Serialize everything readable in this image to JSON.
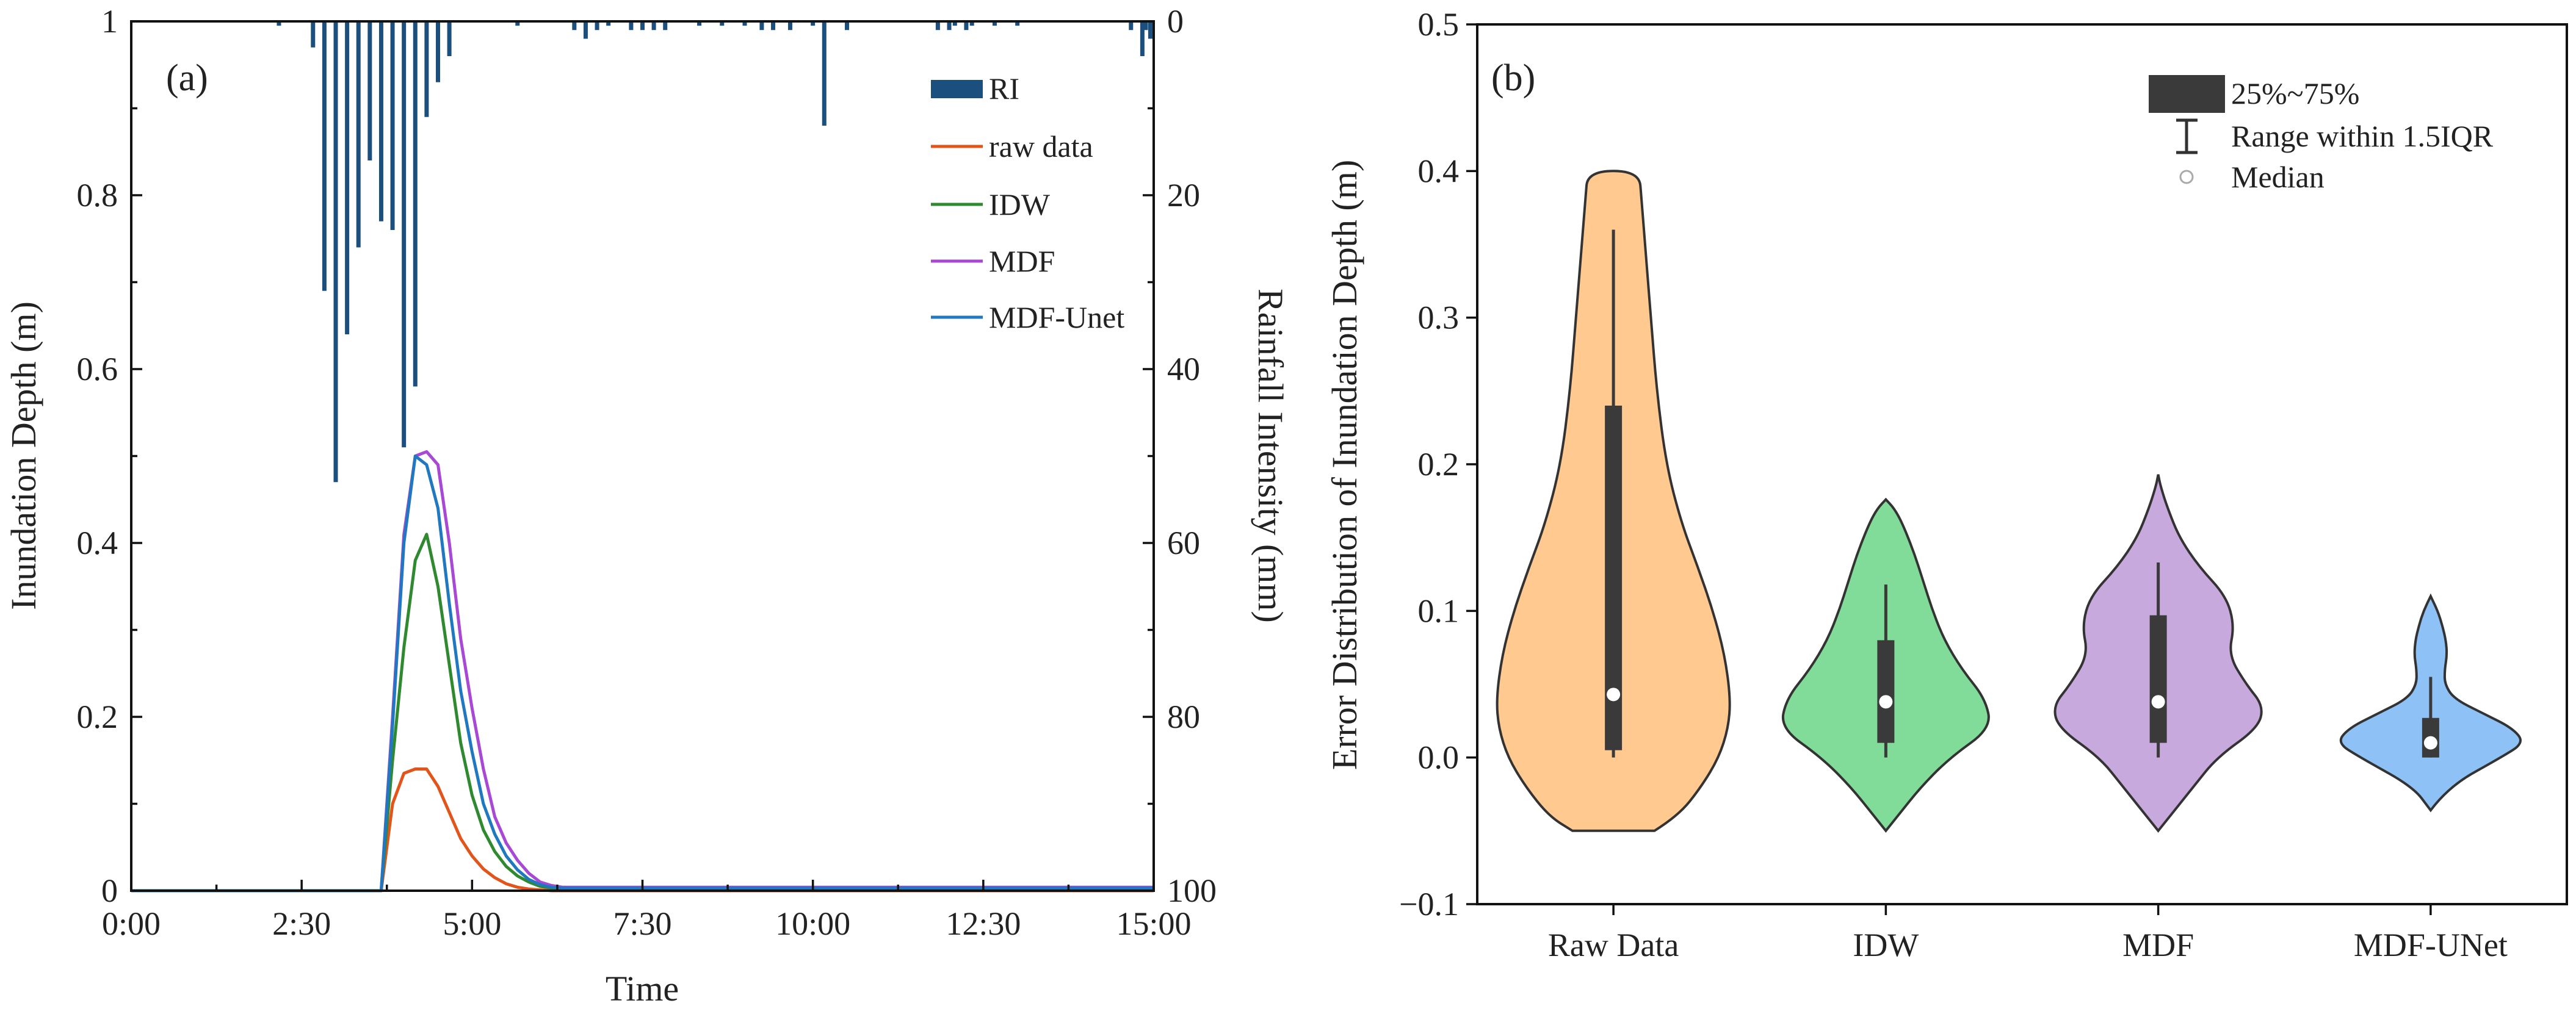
{
  "chart_data": [
    {
      "panel": "(a)",
      "type": "line",
      "title": "",
      "xlabel": "Time",
      "ylabel": "Inundation Depth (m)",
      "y2label": "Rainfall Intensity (mm)",
      "xlim": [
        0,
        900
      ],
      "ylim": [
        0,
        1
      ],
      "y2lim": [
        0,
        100
      ],
      "y2_inverted": true,
      "x_ticks": [
        0,
        150,
        300,
        450,
        600,
        750,
        900
      ],
      "x_tick_labels": [
        "0:00",
        "2:30",
        "5:00",
        "7:30",
        "10:00",
        "12:30",
        "15:00"
      ],
      "y_ticks": [
        0,
        0.2,
        0.4,
        0.6,
        0.8,
        1
      ],
      "y_tick_labels": [
        "0",
        "0.2",
        "0.4",
        "0.6",
        "0.8",
        "1"
      ],
      "y2_ticks": [
        0,
        20,
        40,
        60,
        80,
        100
      ],
      "y2_tick_labels": [
        "0",
        "20",
        "40",
        "60",
        "80",
        "100"
      ],
      "legend_position": "top-right",
      "legend": [
        "RI",
        "raw data",
        "IDW",
        "MDF",
        "MDF-Unet"
      ],
      "rainfall": {
        "name": "RI",
        "color": "#1b4f7e",
        "time": [
          130,
          160,
          170,
          180,
          190,
          200,
          210,
          220,
          230,
          240,
          250,
          260,
          270,
          280,
          340,
          390,
          400,
          410,
          420,
          440,
          450,
          460,
          470,
          500,
          520,
          540,
          555,
          565,
          580,
          600,
          610,
          630,
          710,
          720,
          725,
          735,
          740,
          760,
          780,
          880,
          890,
          893,
          897
        ],
        "intensity": [
          0.5,
          3,
          31,
          53,
          36,
          26,
          16,
          23,
          24,
          49,
          42,
          11,
          7,
          4,
          0.5,
          1,
          2,
          1,
          0.5,
          1,
          1,
          1,
          1,
          0.5,
          0.5,
          0.5,
          1,
          1,
          1,
          0.5,
          12,
          1,
          1,
          1,
          0.5,
          1,
          0.5,
          0.5,
          0.5,
          1,
          4,
          1,
          2
        ]
      },
      "time": [
        0,
        220,
        230,
        240,
        250,
        260,
        270,
        280,
        290,
        300,
        310,
        320,
        330,
        340,
        350,
        360,
        370,
        380,
        390,
        900
      ],
      "series": [
        {
          "name": "raw data",
          "color": "#e3541a",
          "values": [
            0,
            0,
            0.1,
            0.135,
            0.14,
            0.14,
            0.12,
            0.09,
            0.06,
            0.04,
            0.025,
            0.015,
            0.008,
            0.004,
            0.002,
            0.001,
            0,
            0,
            0,
            0
          ]
        },
        {
          "name": "IDW",
          "color": "#2f8a2f",
          "values": [
            0,
            0,
            0.15,
            0.28,
            0.38,
            0.41,
            0.35,
            0.26,
            0.17,
            0.11,
            0.07,
            0.045,
            0.028,
            0.017,
            0.01,
            0.005,
            0.003,
            0.002,
            0.002,
            0.002
          ]
        },
        {
          "name": "MDF",
          "color": "#a848d4",
          "values": [
            0,
            0,
            0.2,
            0.41,
            0.5,
            0.505,
            0.49,
            0.4,
            0.29,
            0.21,
            0.14,
            0.085,
            0.055,
            0.035,
            0.02,
            0.01,
            0.006,
            0.004,
            0.004,
            0.004
          ]
        },
        {
          "name": "MDF-Unet",
          "color": "#1f78c0",
          "values": [
            0,
            0,
            0.19,
            0.4,
            0.5,
            0.49,
            0.44,
            0.33,
            0.23,
            0.16,
            0.1,
            0.065,
            0.04,
            0.024,
            0.013,
            0.007,
            0.004,
            0.003,
            0.003,
            0.003
          ]
        }
      ]
    },
    {
      "panel": "(b)",
      "type": "violin",
      "title": "",
      "xlabel": "",
      "ylabel": "Error Distribution of Inundation Depth (m)",
      "ylim": [
        -0.1,
        0.5
      ],
      "y_ticks": [
        -0.1,
        0.0,
        0.1,
        0.2,
        0.3,
        0.4,
        0.5
      ],
      "y_tick_labels": [
        "−0.1",
        "0.0",
        "0.1",
        "0.2",
        "0.3",
        "0.4",
        "0.5"
      ],
      "legend_position": "top-right",
      "legend": [
        {
          "label": "25%~75%",
          "symbol": "box"
        },
        {
          "label": "Range within 1.5IQR",
          "symbol": "whisker"
        },
        {
          "label": "Median",
          "symbol": "circle"
        }
      ],
      "categories": [
        "Raw Data",
        "IDW",
        "MDF",
        "MDF-UNet"
      ],
      "colors": [
        "#ffc990",
        "#80dc98",
        "#c8a9dd",
        "#8ec2f7"
      ],
      "violins": [
        {
          "name": "Raw Data",
          "profile_y": [
            -0.05,
            -0.04,
            -0.02,
            0.0,
            0.02,
            0.04,
            0.07,
            0.1,
            0.13,
            0.16,
            0.2,
            0.25,
            0.3,
            0.35,
            0.38,
            0.4
          ],
          "profile_halfwidth": [
            0.35,
            0.55,
            0.75,
            0.9,
            0.98,
            1.0,
            0.95,
            0.85,
            0.72,
            0.58,
            0.45,
            0.37,
            0.32,
            0.27,
            0.24,
            0.22
          ],
          "q1": 0.005,
          "q3": 0.24,
          "whisker_low": 0.0,
          "whisker_high": 0.36,
          "median": 0.043
        },
        {
          "name": "IDW",
          "profile_y": [
            -0.05,
            -0.04,
            -0.02,
            0.0,
            0.02,
            0.04,
            0.06,
            0.08,
            0.1,
            0.12,
            0.14,
            0.16,
            0.17,
            0.176
          ],
          "profile_halfwidth": [
            0.0,
            0.1,
            0.3,
            0.55,
            0.9,
            0.85,
            0.65,
            0.5,
            0.4,
            0.32,
            0.24,
            0.14,
            0.07,
            0.0
          ],
          "q1": 0.01,
          "q3": 0.08,
          "whisker_low": 0.0,
          "whisker_high": 0.118,
          "median": 0.038
        },
        {
          "name": "MDF",
          "profile_y": [
            -0.05,
            -0.04,
            -0.02,
            0.0,
            0.02,
            0.035,
            0.05,
            0.07,
            0.09,
            0.11,
            0.13,
            0.15,
            0.17,
            0.185,
            0.193
          ],
          "profile_halfwidth": [
            0.0,
            0.1,
            0.3,
            0.5,
            0.85,
            0.9,
            0.75,
            0.6,
            0.65,
            0.58,
            0.35,
            0.18,
            0.08,
            0.02,
            0.0
          ],
          "q1": 0.01,
          "q3": 0.097,
          "whisker_low": 0.0,
          "whisker_high": 0.133,
          "median": 0.038
        },
        {
          "name": "MDF-UNet",
          "profile_y": [
            -0.036,
            -0.02,
            0.0,
            0.01,
            0.02,
            0.03,
            0.04,
            0.05,
            0.06,
            0.07,
            0.08,
            0.09,
            0.1,
            0.11
          ],
          "profile_halfwidth": [
            0.0,
            0.15,
            0.6,
            0.8,
            0.7,
            0.45,
            0.2,
            0.12,
            0.12,
            0.14,
            0.13,
            0.1,
            0.06,
            0.0
          ],
          "q1": 0.0,
          "q3": 0.027,
          "whisker_low": 0.0,
          "whisker_high": 0.055,
          "median": 0.01
        }
      ]
    }
  ]
}
